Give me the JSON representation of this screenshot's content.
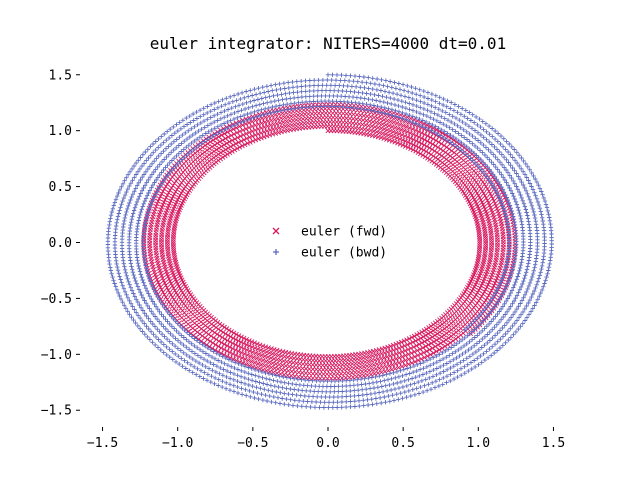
{
  "chart_data": {
    "type": "scatter",
    "title": "euler integrator: NITERS=4000 dt=0.01",
    "xlabel": "",
    "ylabel": "",
    "xlim": [
      -1.65,
      1.65
    ],
    "ylim": [
      -1.65,
      1.65
    ],
    "xticks": [
      "−1.5",
      "−1.0",
      "−0.5",
      "0.0",
      "0.5",
      "1.0",
      "1.5"
    ],
    "xtick_values": [
      -1.5,
      -1.0,
      -0.5,
      0.0,
      0.5,
      1.0,
      1.5
    ],
    "yticks": [
      "1.5",
      "1.0",
      "0.5",
      "0.0",
      "−0.5",
      "−1.0",
      "−1.5"
    ],
    "ytick_values": [
      1.5,
      1.0,
      0.5,
      0.0,
      -0.5,
      -1.0,
      -1.5
    ],
    "grid": false,
    "legend": "center",
    "series": [
      {
        "name": "euler (fwd)",
        "marker": "x",
        "color": "#d81b60",
        "start_radius": 1.0,
        "end_radius": 1.25,
        "x_stretch": 1.0,
        "y_start": 1.0
      },
      {
        "name": "euler (bwd)",
        "marker": "+",
        "color": "#5c6bc0",
        "start_radius": 1.5,
        "end_radius": 1.2,
        "x_stretch": 1.0,
        "y_start": 1.5
      }
    ],
    "niters": 4000,
    "dt": 0.01
  }
}
